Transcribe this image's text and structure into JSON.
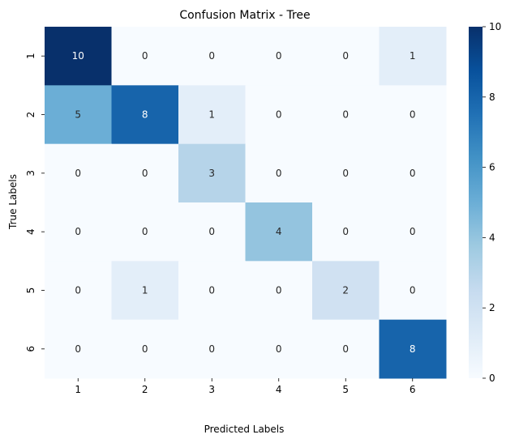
{
  "chart_data": {
    "type": "heatmap",
    "title": "Confusion Matrix - Tree",
    "xlabel": "Predicted Labels",
    "ylabel": "True Labels",
    "x_categories": [
      "1",
      "2",
      "3",
      "4",
      "5",
      "6"
    ],
    "y_categories": [
      "1",
      "2",
      "3",
      "4",
      "5",
      "6"
    ],
    "values": [
      [
        10,
        0,
        0,
        0,
        0,
        1
      ],
      [
        5,
        8,
        1,
        0,
        0,
        0
      ],
      [
        0,
        0,
        3,
        0,
        0,
        0
      ],
      [
        0,
        0,
        0,
        4,
        0,
        0
      ],
      [
        0,
        1,
        0,
        0,
        2,
        0
      ],
      [
        0,
        0,
        0,
        0,
        0,
        8
      ]
    ],
    "colorbar": {
      "min": 0,
      "max": 10,
      "ticks": [
        "0",
        "2",
        "4",
        "6",
        "8",
        "10"
      ]
    },
    "colormap": "Blues"
  }
}
